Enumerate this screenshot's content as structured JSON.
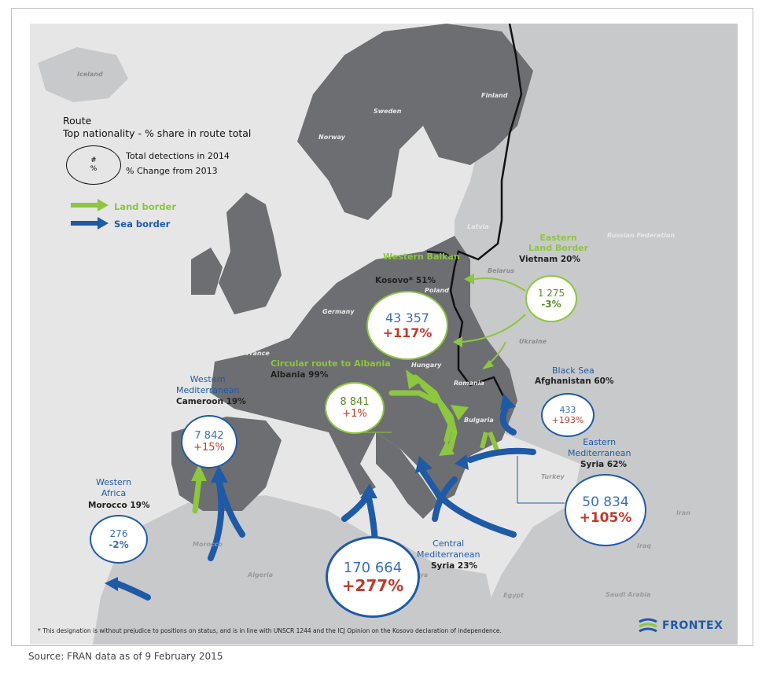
{
  "legend": {
    "title_line1": "Route",
    "title_line2": "Top nationality - % share in route total",
    "circle_hash": "#",
    "circle_pct": "%",
    "total_text": "Total detections in 2014",
    "change_text": "% Change from 2013",
    "land_label": "Land border",
    "sea_label": "Sea border"
  },
  "countries": {
    "iceland": "Iceland",
    "norway": "Norway",
    "sweden": "Sweden",
    "finland": "Finland",
    "russia": "Russian Federation",
    "latvia": "Latvia",
    "belarus": "Belarus",
    "poland": "Poland",
    "germany": "Germany",
    "ukraine": "Ukraine",
    "france": "France",
    "hungary": "Hungary",
    "romania": "Romania",
    "bulgaria": "Bulgaria",
    "turkey": "Turkey",
    "iran": "Iran",
    "iraq": "Iraq",
    "morocco": "Morocco",
    "algeria": "Algeria",
    "libya": "Libya",
    "egypt": "Egypt",
    "saudi": "Saudi Arabia"
  },
  "routes": {
    "western_balkan": {
      "name": "Western Balkan",
      "nationality": "Kosovo* 51%",
      "total": "43 357",
      "change": "+117%"
    },
    "eastern_land": {
      "name_line1": "Eastern",
      "name_line2": "Land Border",
      "nationality": "Vietnam 20%",
      "total": "1 275",
      "change": "-3%"
    },
    "circular_albania": {
      "name": "Circular route to Albania",
      "nationality": "Albania 99%",
      "total": "8 841",
      "change": "+1%"
    },
    "black_sea": {
      "name": "Black Sea",
      "nationality": "Afghanistan 60%",
      "total": "433",
      "change": "+193%"
    },
    "western_med": {
      "name_line1": "Western",
      "name_line2": "Mediterranean",
      "nationality": "Cameroon 19%",
      "total": "7 842",
      "change": "+15%"
    },
    "eastern_med": {
      "name_line1": "Eastern",
      "name_line2": "Mediterranean",
      "nationality": "Syria 62%",
      "total": "50 834",
      "change": "+105%"
    },
    "western_africa": {
      "name_line1": "Western",
      "name_line2": "Africa",
      "nationality": "Morocco 19%",
      "total": "276",
      "change": "-2%"
    },
    "central_med": {
      "name_line1": "Central",
      "name_line2": "Mediterranean",
      "nationality": "Syria 23%",
      "total": "170 664",
      "change": "+277%"
    }
  },
  "footnote": "* This designation is without prejudice to positions on status, and is in line with UNSCR 1244 and the ICJ Opinion on the Kosovo declaration of independence.",
  "source": "Source: FRAN data as of 9 February 2015",
  "logo": "FRONTEX",
  "colors": {
    "land": "#8dc63f",
    "sea": "#1f5aa6",
    "eu_land": "#6d6e71",
    "non_eu": "#c8c9cb",
    "sea_bg": "#e6e6e6"
  }
}
